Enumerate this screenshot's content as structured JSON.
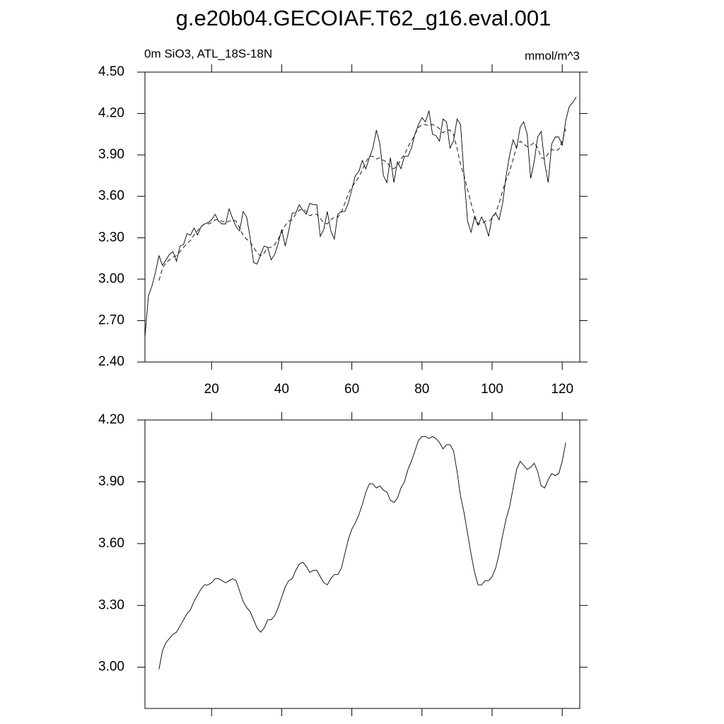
{
  "chart_data": [
    {
      "type": "line",
      "title": "g.e20b04.GECOIAF.T62_g16.eval.001",
      "subtitle": "0m SiO3, ATL_18S-18N",
      "units": "mmol/m^3",
      "xlim": [
        1,
        125
      ],
      "xticks": [
        20,
        40,
        60,
        80,
        100,
        120
      ],
      "show_xtick_labels": true,
      "ylim": [
        2.4,
        4.5
      ],
      "yticks": [
        {
          "value": 2.4,
          "label": "2.40"
        },
        {
          "value": 2.7,
          "label": "2.70"
        },
        {
          "value": 3.0,
          "label": "3.00"
        },
        {
          "value": 3.3,
          "label": "3.30"
        },
        {
          "value": 3.6,
          "label": "3.60"
        },
        {
          "value": 3.9,
          "label": "3.90"
        },
        {
          "value": 4.2,
          "label": "4.20"
        },
        {
          "value": 4.5,
          "label": "4.50"
        }
      ],
      "series": [
        {
          "color": "#000000",
          "line_style": "solid",
          "x": [
            1,
            2,
            3,
            4,
            5,
            6,
            7,
            8,
            9,
            10,
            11,
            12,
            13,
            14,
            15,
            16,
            17,
            18,
            19,
            20,
            21,
            22,
            23,
            24,
            25,
            26,
            27,
            28,
            29,
            30,
            31,
            32,
            33,
            34,
            35,
            36,
            37,
            38,
            39,
            40,
            41,
            42,
            43,
            44,
            45,
            46,
            47,
            48,
            49,
            50,
            51,
            52,
            53,
            54,
            55,
            56,
            57,
            58,
            59,
            60,
            61,
            62,
            63,
            64,
            65,
            66,
            67,
            68,
            69,
            70,
            71,
            72,
            73,
            74,
            75,
            76,
            77,
            78,
            79,
            80,
            81,
            82,
            83,
            84,
            85,
            86,
            87,
            88,
            89,
            90,
            91,
            92,
            93,
            94,
            95,
            96,
            97,
            98,
            99,
            100,
            101,
            102,
            103,
            104,
            105,
            106,
            107,
            108,
            109,
            110,
            111,
            112,
            113,
            114,
            115,
            116,
            117,
            118,
            119,
            120,
            121,
            122,
            123,
            124
          ],
          "values": [
            2.58,
            2.88,
            2.95,
            3.05,
            3.17,
            3.1,
            3.14,
            3.18,
            3.2,
            3.13,
            3.24,
            3.25,
            3.33,
            3.32,
            3.37,
            3.32,
            3.38,
            3.4,
            3.41,
            3.43,
            3.47,
            3.42,
            3.4,
            3.4,
            3.51,
            3.44,
            3.38,
            3.35,
            3.49,
            3.45,
            3.3,
            3.12,
            3.11,
            3.18,
            3.24,
            3.23,
            3.14,
            3.18,
            3.26,
            3.36,
            3.24,
            3.35,
            3.48,
            3.48,
            3.54,
            3.5,
            3.47,
            3.55,
            3.54,
            3.54,
            3.31,
            3.36,
            3.49,
            3.35,
            3.29,
            3.47,
            3.49,
            3.49,
            3.55,
            3.65,
            3.75,
            3.78,
            3.86,
            3.8,
            3.88,
            3.95,
            4.08,
            3.98,
            3.75,
            3.7,
            3.88,
            3.7,
            3.85,
            3.8,
            3.89,
            3.89,
            3.95,
            4.05,
            4.12,
            4.17,
            4.14,
            4.22,
            4.05,
            4.04,
            4.0,
            4.16,
            4.14,
            3.95,
            4.0,
            4.16,
            4.12,
            3.75,
            3.42,
            3.34,
            3.45,
            3.39,
            3.45,
            3.4,
            3.31,
            3.45,
            3.48,
            3.43,
            3.55,
            3.75,
            3.9,
            4.01,
            3.95,
            4.1,
            4.14,
            4.05,
            3.73,
            3.85,
            4.03,
            4.07,
            3.84,
            3.7,
            3.98,
            4.03,
            4.03,
            3.97,
            4.15,
            4.25,
            4.28,
            4.32
          ]
        },
        {
          "color": "#000000",
          "line_style": "dashed",
          "x": [
            5,
            6,
            7,
            8,
            9,
            10,
            11,
            12,
            13,
            14,
            15,
            16,
            17,
            18,
            19,
            20,
            21,
            22,
            23,
            24,
            25,
            26,
            27,
            28,
            29,
            30,
            31,
            32,
            33,
            34,
            35,
            36,
            37,
            38,
            39,
            40,
            41,
            42,
            43,
            44,
            45,
            46,
            47,
            48,
            49,
            50,
            51,
            52,
            53,
            54,
            55,
            56,
            57,
            58,
            59,
            60,
            61,
            62,
            63,
            64,
            65,
            66,
            67,
            68,
            69,
            70,
            71,
            72,
            73,
            74,
            75,
            76,
            77,
            78,
            79,
            80,
            81,
            82,
            83,
            84,
            85,
            86,
            87,
            88,
            89,
            90,
            91,
            92,
            93,
            94,
            95,
            96,
            97,
            98,
            99,
            100,
            101,
            102,
            103,
            104,
            105,
            106,
            107,
            108,
            109,
            110,
            111,
            112,
            113,
            114,
            115,
            116,
            117,
            118,
            119,
            120,
            121
          ],
          "values": [
            2.99,
            3.08,
            3.12,
            3.14,
            3.16,
            3.17,
            3.2,
            3.23,
            3.26,
            3.28,
            3.32,
            3.35,
            3.38,
            3.4,
            3.4,
            3.41,
            3.43,
            3.43,
            3.42,
            3.41,
            3.42,
            3.43,
            3.42,
            3.37,
            3.32,
            3.29,
            3.27,
            3.23,
            3.19,
            3.17,
            3.19,
            3.23,
            3.23,
            3.25,
            3.29,
            3.34,
            3.39,
            3.42,
            3.43,
            3.47,
            3.5,
            3.51,
            3.49,
            3.46,
            3.47,
            3.47,
            3.44,
            3.41,
            3.4,
            3.43,
            3.45,
            3.45,
            3.48,
            3.55,
            3.62,
            3.67,
            3.7,
            3.74,
            3.79,
            3.85,
            3.89,
            3.89,
            3.87,
            3.88,
            3.86,
            3.85,
            3.81,
            3.8,
            3.82,
            3.87,
            3.9,
            3.96,
            4.0,
            4.05,
            4.1,
            4.12,
            4.12,
            4.11,
            4.12,
            4.11,
            4.09,
            4.06,
            4.08,
            4.08,
            4.05,
            3.95,
            3.83,
            3.75,
            3.65,
            3.55,
            3.46,
            3.4,
            3.4,
            3.42,
            3.42,
            3.44,
            3.48,
            3.55,
            3.64,
            3.72,
            3.78,
            3.87,
            3.96,
            4.0,
            3.98,
            3.96,
            3.97,
            3.99,
            3.95,
            3.88,
            3.87,
            3.91,
            3.94,
            3.93,
            3.94,
            4.0,
            4.09
          ]
        }
      ]
    },
    {
      "type": "line",
      "xlim": [
        1,
        125
      ],
      "xticks": [
        20,
        40,
        60,
        80,
        100,
        120
      ],
      "show_xtick_labels": false,
      "ylim": [
        2.8,
        4.2
      ],
      "yticks": [
        {
          "value": 3.0,
          "label": "3.00"
        },
        {
          "value": 3.3,
          "label": "3.30"
        },
        {
          "value": 3.6,
          "label": "3.60"
        },
        {
          "value": 3.9,
          "label": "3.90"
        },
        {
          "value": 4.2,
          "label": "4.20"
        }
      ],
      "series": [
        {
          "color": "#000000",
          "line_style": "solid",
          "x": [
            5,
            6,
            7,
            8,
            9,
            10,
            11,
            12,
            13,
            14,
            15,
            16,
            17,
            18,
            19,
            20,
            21,
            22,
            23,
            24,
            25,
            26,
            27,
            28,
            29,
            30,
            31,
            32,
            33,
            34,
            35,
            36,
            37,
            38,
            39,
            40,
            41,
            42,
            43,
            44,
            45,
            46,
            47,
            48,
            49,
            50,
            51,
            52,
            53,
            54,
            55,
            56,
            57,
            58,
            59,
            60,
            61,
            62,
            63,
            64,
            65,
            66,
            67,
            68,
            69,
            70,
            71,
            72,
            73,
            74,
            75,
            76,
            77,
            78,
            79,
            80,
            81,
            82,
            83,
            84,
            85,
            86,
            87,
            88,
            89,
            90,
            91,
            92,
            93,
            94,
            95,
            96,
            97,
            98,
            99,
            100,
            101,
            102,
            103,
            104,
            105,
            106,
            107,
            108,
            109,
            110,
            111,
            112,
            113,
            114,
            115,
            116,
            117,
            118,
            119,
            120,
            121
          ],
          "values": [
            2.99,
            3.08,
            3.12,
            3.14,
            3.16,
            3.17,
            3.2,
            3.23,
            3.26,
            3.28,
            3.32,
            3.35,
            3.38,
            3.4,
            3.4,
            3.41,
            3.43,
            3.43,
            3.42,
            3.41,
            3.42,
            3.43,
            3.42,
            3.37,
            3.32,
            3.29,
            3.27,
            3.23,
            3.19,
            3.17,
            3.19,
            3.23,
            3.23,
            3.25,
            3.29,
            3.34,
            3.39,
            3.42,
            3.43,
            3.47,
            3.5,
            3.51,
            3.49,
            3.46,
            3.47,
            3.47,
            3.44,
            3.41,
            3.4,
            3.43,
            3.45,
            3.45,
            3.48,
            3.55,
            3.62,
            3.67,
            3.7,
            3.74,
            3.79,
            3.85,
            3.89,
            3.89,
            3.87,
            3.88,
            3.86,
            3.85,
            3.81,
            3.8,
            3.82,
            3.87,
            3.9,
            3.96,
            4.0,
            4.05,
            4.1,
            4.12,
            4.12,
            4.11,
            4.12,
            4.11,
            4.09,
            4.06,
            4.08,
            4.08,
            4.05,
            3.95,
            3.83,
            3.75,
            3.65,
            3.55,
            3.46,
            3.4,
            3.4,
            3.42,
            3.42,
            3.44,
            3.48,
            3.55,
            3.64,
            3.72,
            3.78,
            3.87,
            3.96,
            4.0,
            3.98,
            3.96,
            3.97,
            3.99,
            3.95,
            3.88,
            3.87,
            3.91,
            3.94,
            3.93,
            3.94,
            4.0,
            4.09
          ]
        }
      ]
    }
  ]
}
